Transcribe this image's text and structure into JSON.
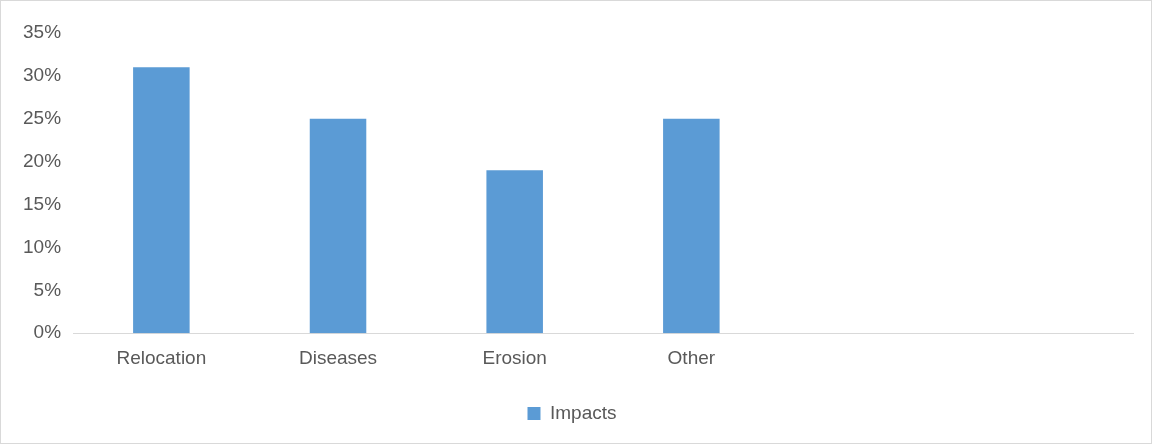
{
  "chart_data": {
    "type": "bar",
    "categories": [
      "Relocation",
      "Diseases",
      "Erosion",
      "Other",
      null,
      null
    ],
    "series": [
      {
        "name": "Impacts",
        "color": "#5b9bd5",
        "values": [
          31,
          25,
          19,
          25,
          null,
          null
        ]
      }
    ],
    "ylim": [
      0,
      35
    ],
    "yticks": [
      {
        "value": 0,
        "label": "0%"
      },
      {
        "value": 5,
        "label": "5%"
      },
      {
        "value": 10,
        "label": "10%"
      },
      {
        "value": 15,
        "label": "15%"
      },
      {
        "value": 20,
        "label": "20%"
      },
      {
        "value": 25,
        "label": "25%"
      },
      {
        "value": 30,
        "label": "30%"
      },
      {
        "value": 35,
        "label": "35%"
      }
    ],
    "grid": false,
    "legend": "bottom"
  }
}
